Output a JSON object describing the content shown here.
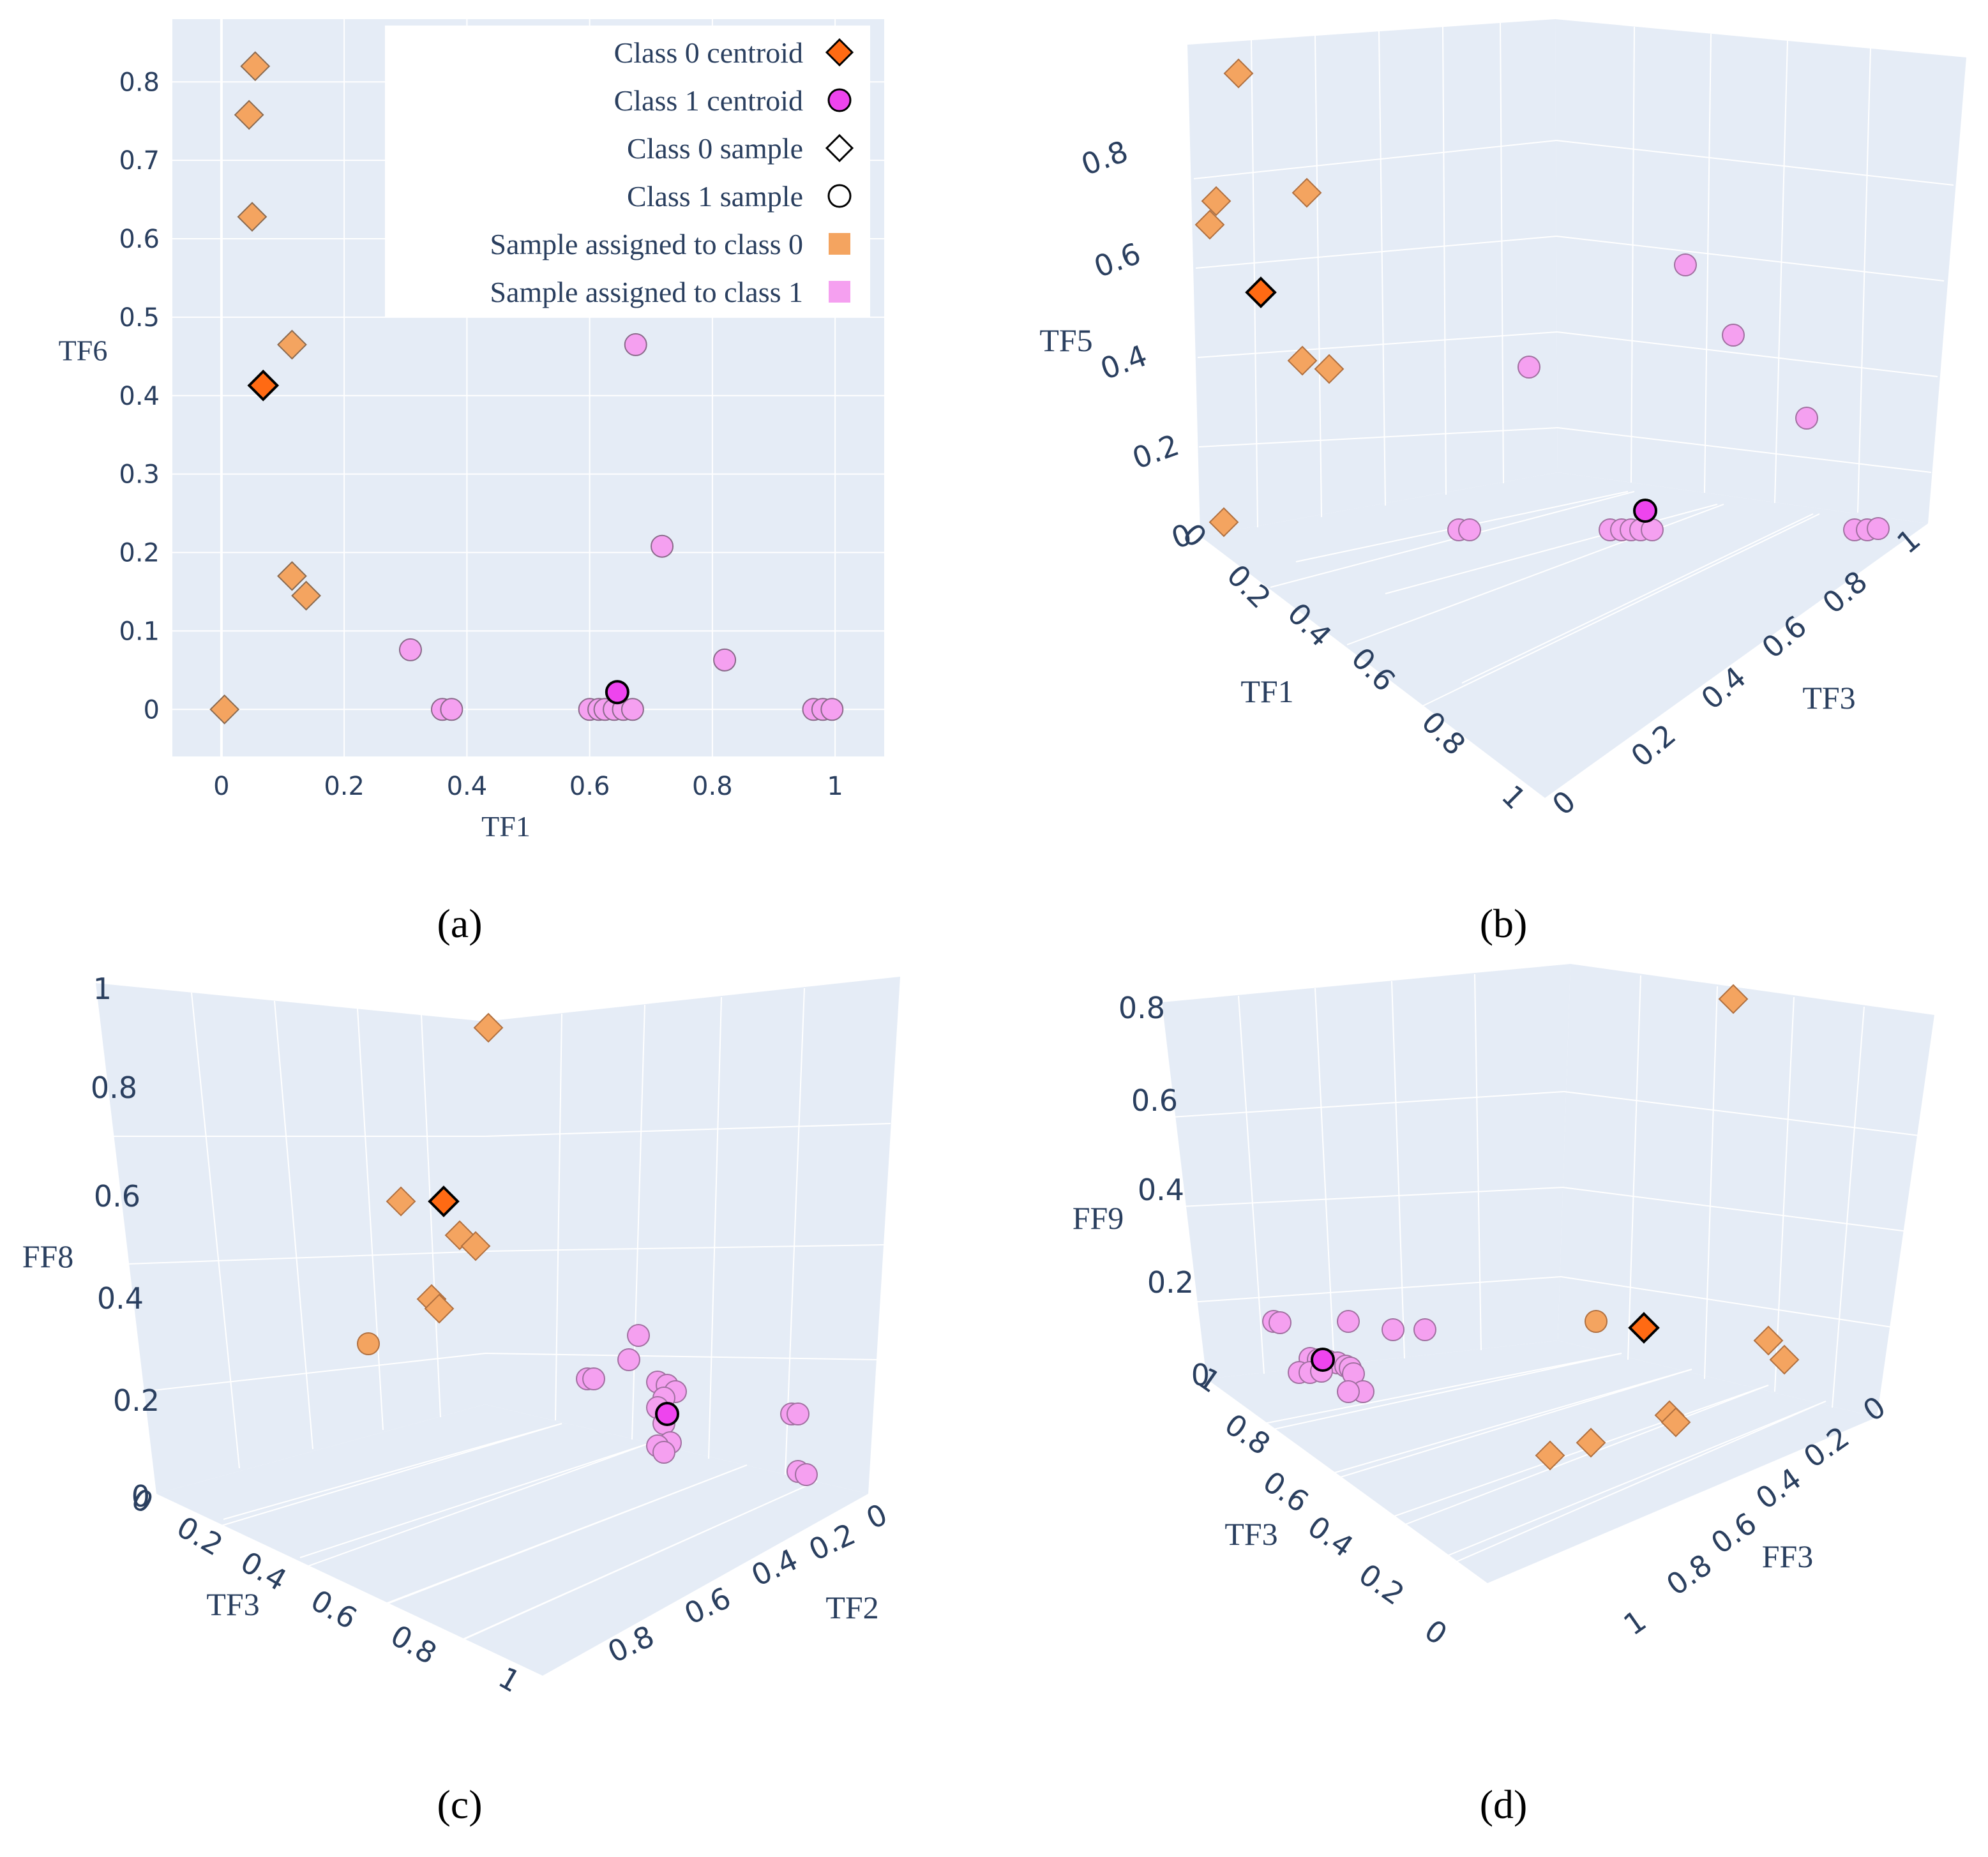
{
  "colors": {
    "plot_bg": "#e5ecf6",
    "grid": "#ffffff",
    "class0_sample": "#f4a460",
    "class0_centroid": "#ff6a13",
    "class1_sample": "#f5a0f0",
    "class1_centroid": "#ee44ee",
    "text": "#2a3f5f"
  },
  "captions": {
    "a": "(a)",
    "b": "(b)",
    "c": "(c)",
    "d": "(d)"
  },
  "legend": [
    {
      "label": "Class 0 centroid",
      "symbol": "diamond",
      "color": "#ff6a13",
      "outline": "#000"
    },
    {
      "label": "Class 1 centroid",
      "symbol": "circle",
      "color": "#ee44ee",
      "outline": "#000"
    },
    {
      "label": "Class 0 sample",
      "symbol": "diamond",
      "color": "#ffffff",
      "outline": "#000"
    },
    {
      "label": "Class 1 sample",
      "symbol": "circle",
      "color": "#ffffff",
      "outline": "#000"
    },
    {
      "label": "Sample assigned to class 0",
      "symbol": "square",
      "color": "#f4a460",
      "outline": "none"
    },
    {
      "label": "Sample assigned to class 1",
      "symbol": "square",
      "color": "#f5a0f0",
      "outline": "none"
    }
  ],
  "chart_data": [
    {
      "id": "a",
      "type": "scatter",
      "xlabel": "TF1",
      "ylabel": "TF6",
      "xlim": [
        -0.08,
        1.08
      ],
      "ylim": [
        -0.06,
        0.88
      ],
      "xticks": [
        "0",
        "0.2",
        "0.4",
        "0.6",
        "0.8",
        "1"
      ],
      "yticks": [
        "0",
        "0.1",
        "0.2",
        "0.3",
        "0.4",
        "0.5",
        "0.6",
        "0.7",
        "0.8"
      ],
      "class0_samples": [
        [
          0.055,
          0.82
        ],
        [
          0.045,
          0.758
        ],
        [
          0.05,
          0.628
        ],
        [
          0.115,
          0.465
        ],
        [
          0.115,
          0.17
        ],
        [
          0.138,
          0.145
        ],
        [
          0.005,
          0.0
        ]
      ],
      "class1_samples": [
        [
          0.675,
          0.465
        ],
        [
          0.718,
          0.208
        ],
        [
          0.308,
          0.076
        ],
        [
          0.82,
          0.063
        ],
        [
          0.36,
          0.0
        ],
        [
          0.375,
          0.0
        ],
        [
          0.6,
          0.0
        ],
        [
          0.615,
          0.0
        ],
        [
          0.625,
          0.0
        ],
        [
          0.64,
          0.0
        ],
        [
          0.655,
          0.0
        ],
        [
          0.67,
          0.0
        ],
        [
          0.965,
          0.0
        ],
        [
          0.98,
          0.0
        ],
        [
          0.995,
          0.0
        ]
      ],
      "class0_centroid": [
        [
          0.068,
          0.413
        ]
      ],
      "class1_centroid": [
        [
          0.645,
          0.022
        ]
      ]
    },
    {
      "id": "b",
      "type": "scatter3d",
      "xlabel": "TF1",
      "ylabel": "TF3",
      "zlabel": "TF5",
      "xticks": [
        "0",
        "0.2",
        "0.4",
        "0.6",
        "0.8",
        "1"
      ],
      "yticks": [
        "0",
        "0.2",
        "0.4",
        "0.6",
        "0.8",
        "1"
      ],
      "zticks": [
        "0",
        "0.2",
        "0.4",
        "0.6",
        "0.8"
      ]
    },
    {
      "id": "c",
      "type": "scatter3d",
      "xlabel": "TF3",
      "ylabel": "TF2",
      "zlabel": "FF8",
      "xticks": [
        "0",
        "0.2",
        "0.4",
        "0.6",
        "0.8",
        "1"
      ],
      "yticks": [
        "0",
        "0.2",
        "0.4",
        "0.6",
        "0.8"
      ],
      "zticks": [
        "0",
        "0.2",
        "0.4",
        "0.6",
        "0.8",
        "1"
      ]
    },
    {
      "id": "d",
      "type": "scatter3d",
      "xlabel": "TF3",
      "ylabel": "FF3",
      "zlabel": "FF9",
      "xticks": [
        "1",
        "0.8",
        "0.6",
        "0.4",
        "0.2",
        "0"
      ],
      "yticks": [
        "0",
        "0.2",
        "0.4",
        "0.6",
        "0.8",
        "1"
      ],
      "zticks": [
        "0",
        "0.2",
        "0.4",
        "0.6",
        "0.8"
      ]
    }
  ]
}
